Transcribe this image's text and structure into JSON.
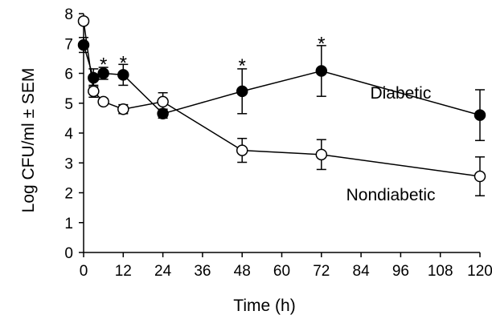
{
  "chart_data": {
    "type": "line",
    "title": "",
    "xlabel": "Time (h)",
    "ylabel": "Log CFU/ml ± SEM",
    "xlim": [
      0,
      120
    ],
    "ylim": [
      0,
      8
    ],
    "xticks": [
      0,
      12,
      24,
      36,
      48,
      60,
      72,
      84,
      96,
      108,
      120
    ],
    "yticks": [
      0,
      1,
      2,
      3,
      4,
      5,
      6,
      7,
      8
    ],
    "grid": false,
    "legend": "none (series labeled directly on plot)",
    "series": [
      {
        "name": "Diabetic",
        "marker": "filled-circle",
        "color": "#000000",
        "x": [
          0,
          3,
          6,
          12,
          24,
          48,
          72,
          120
        ],
        "y": [
          6.95,
          5.85,
          6.0,
          5.95,
          4.65,
          5.4,
          6.08,
          4.6
        ],
        "sem": [
          0.25,
          0.3,
          0.2,
          0.35,
          0.15,
          0.75,
          0.85,
          0.85
        ]
      },
      {
        "name": "Nondiabetic",
        "marker": "open-circle",
        "color": "#000000",
        "x": [
          0,
          3,
          6,
          12,
          24,
          48,
          72,
          120
        ],
        "y": [
          7.75,
          5.4,
          5.05,
          4.8,
          5.05,
          3.42,
          3.28,
          2.55
        ],
        "sem": [
          0.1,
          0.2,
          0.1,
          0.15,
          0.3,
          0.4,
          0.5,
          0.65
        ]
      }
    ],
    "annotations": [
      {
        "text": "*",
        "x": 6,
        "y": 6.3
      },
      {
        "text": "*",
        "x": 12,
        "y": 6.35
      },
      {
        "text": "*",
        "x": 48,
        "y": 6.25
      },
      {
        "text": "*",
        "x": 72,
        "y": 7.0
      }
    ],
    "series_labels": [
      {
        "text": "Diabetic",
        "series": "Diabetic"
      },
      {
        "text": "Nondiabetic",
        "series": "Nondiabetic"
      }
    ]
  }
}
